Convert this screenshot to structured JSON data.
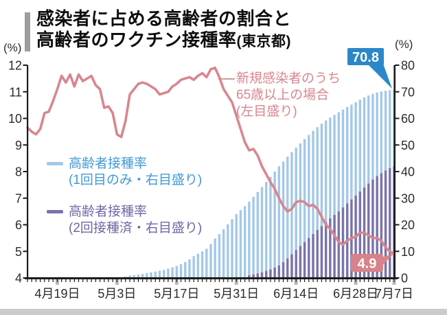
{
  "header": {
    "title_line1": "感染者に占める高齢者の割合と",
    "title_line2": "高齢者のワクチン接種率",
    "title_suffix": "(東京都)",
    "accent_color": "#9d9d9d"
  },
  "annotation": {
    "line1": "新規感染者のうち",
    "line2": "65歳以上の場合",
    "line3": "(左目盛り)",
    "color": "#d8868e"
  },
  "legend": {
    "first_dose": {
      "label_line1": "高齢者接種率",
      "label_line2": "(1回目のみ・右目盛り)",
      "swatch_color": "#a3c8e7",
      "text_color": "#3f9ad4"
    },
    "second_dose": {
      "label_line1": "高齢者接種率",
      "label_line2": "(2回接種済・右目盛り)",
      "swatch_color": "#7b73aa",
      "text_color": "#6e67a4"
    }
  },
  "chart_data": {
    "type": "combo",
    "title": "感染者に占める高齢者の割合と高齢者のワクチン接種率(東京都)",
    "grid": false,
    "left_axis": {
      "unit": "(%)",
      "range": [
        4,
        12
      ],
      "ticks": [
        12,
        11,
        10,
        9,
        8,
        7,
        6,
        5,
        4
      ]
    },
    "right_axis": {
      "unit": "(%)",
      "range": [
        0,
        80
      ],
      "ticks": [
        80,
        70,
        60,
        50,
        40,
        30,
        20,
        10,
        0
      ]
    },
    "x_axis": {
      "day_count": 87,
      "tick_labels": [
        "4月19日",
        "5月3日",
        "5月17日",
        "5月31日",
        "6月14日",
        "6月28日",
        "7月7日"
      ],
      "tick_day_indices": [
        7,
        21,
        35,
        49,
        63,
        77,
        86
      ]
    },
    "series": [
      {
        "name": "新規感染者のうち65歳以上の場合(左目盛り)",
        "type": "line",
        "axis": "left",
        "color": "#d8868e",
        "values": [
          9.65,
          9.5,
          9.4,
          9.6,
          10.2,
          10.25,
          10.65,
          11.1,
          11.6,
          11.35,
          11.65,
          11.2,
          11.65,
          11.4,
          11.5,
          11.6,
          11.25,
          11.1,
          10.4,
          10.45,
          10.2,
          9.4,
          9.3,
          9.9,
          10.9,
          11.1,
          11.3,
          11.35,
          11.3,
          11.2,
          11.1,
          10.9,
          10.95,
          11.0,
          11.2,
          11.3,
          11.45,
          11.5,
          11.55,
          11.45,
          11.6,
          11.7,
          11.55,
          11.85,
          11.9,
          11.55,
          11.1,
          10.85,
          10.6,
          10.1,
          9.6,
          9.1,
          8.8,
          8.85,
          8.6,
          8.2,
          7.9,
          7.6,
          7.35,
          7.0,
          6.7,
          6.5,
          6.6,
          6.85,
          6.9,
          6.85,
          6.7,
          6.75,
          6.6,
          6.3,
          6.0,
          5.85,
          5.6,
          5.35,
          5.25,
          5.4,
          5.5,
          5.55,
          5.7,
          5.7,
          5.6,
          5.5,
          5.5,
          5.4,
          5.15,
          5.0,
          4.9
        ]
      },
      {
        "name": "高齢者接種率(1回目のみ・右目盛り)",
        "type": "bar",
        "axis": "right",
        "color": "#a3c8e7",
        "values": [
          0,
          0,
          0,
          0,
          0,
          0,
          0,
          0,
          0,
          0,
          0,
          0,
          0,
          0,
          0,
          0,
          0,
          0,
          0,
          0,
          0,
          0,
          0,
          0.5,
          0.9,
          1.1,
          1.3,
          1.5,
          1.8,
          2.1,
          2.4,
          2.7,
          3.0,
          3.5,
          4.0,
          4.5,
          5.2,
          6.0,
          7.0,
          8.2,
          9.1,
          10.0,
          11.0,
          12.8,
          14.8,
          16.5,
          18.3,
          20.2,
          22.1,
          24.0,
          25.5,
          27.0,
          28.7,
          30.5,
          32.3,
          34.2,
          36.1,
          38.0,
          40.0,
          42.0,
          43.8,
          45.6,
          47.3,
          49.0,
          50.6,
          52.2,
          53.8,
          55.3,
          56.7,
          58.0,
          59.2,
          60.3,
          61.3,
          62.3,
          63.3,
          64.3,
          65.2,
          66.1,
          67.0,
          67.9,
          68.6,
          69.2,
          69.7,
          70.1,
          70.4,
          70.6,
          70.8
        ]
      },
      {
        "name": "高齢者接種率(2回接種済・右目盛り)",
        "type": "bar",
        "axis": "right",
        "color": "#7b73aa",
        "values": [
          0,
          0,
          0,
          0,
          0,
          0,
          0,
          0,
          0,
          0,
          0,
          0,
          0,
          0,
          0,
          0,
          0,
          0,
          0,
          0,
          0,
          0,
          0,
          0,
          0,
          0,
          0,
          0,
          0,
          0,
          0,
          0,
          0,
          0,
          0,
          0,
          0,
          0,
          0,
          0,
          0,
          0,
          0,
          0,
          0,
          0,
          0,
          0,
          0,
          0,
          0,
          0,
          1.0,
          1.3,
          1.7,
          2.1,
          2.6,
          3.2,
          3.9,
          4.7,
          5.9,
          7.3,
          8.9,
          10.5,
          12.0,
          13.5,
          15.0,
          16.5,
          18.0,
          19.5,
          21.0,
          22.4,
          23.7,
          25.0,
          26.5,
          28.0,
          29.5,
          31.0,
          32.5,
          34.0,
          35.5,
          37.0,
          38.3,
          39.4,
          40.4,
          41.3,
          42.0
        ]
      }
    ],
    "badges": {
      "first_dose_peak": {
        "text": "70.8",
        "bg": "#2b87c9",
        "text_color": "#ffffff"
      },
      "line_end": {
        "text": "4.9",
        "bg": "#d8828a",
        "text_color": "#ffffff"
      }
    },
    "axis_color": "#1a1a1a",
    "tick_label_color": "#2b2b2b",
    "major_tick_color": "#b9b9b9"
  }
}
